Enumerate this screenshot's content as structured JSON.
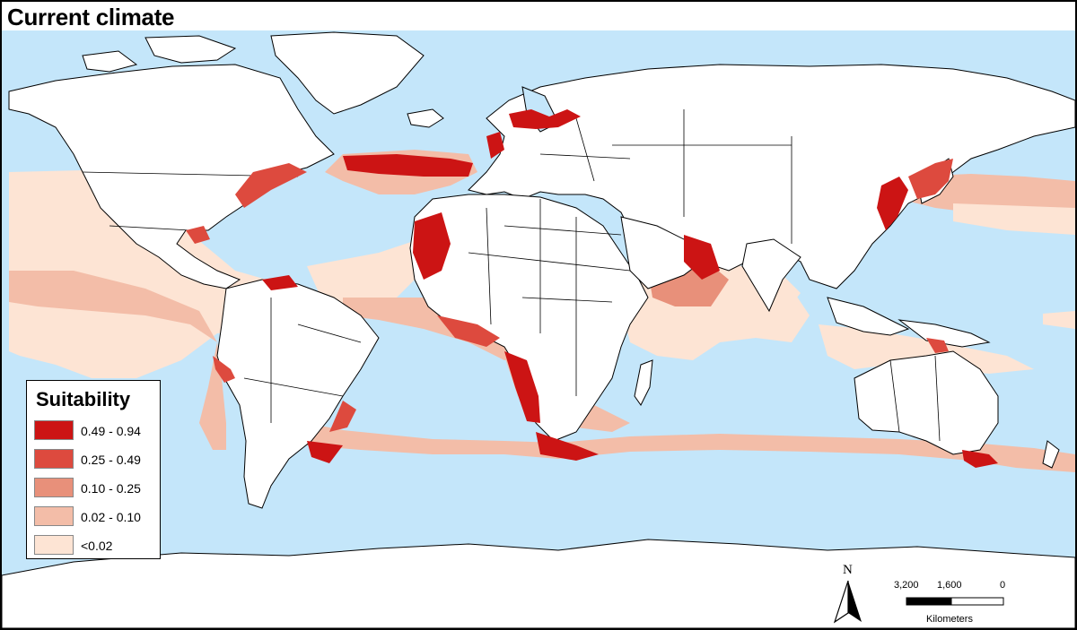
{
  "map": {
    "title": "Current climate",
    "colors": {
      "ocean": "#c4e6fa",
      "land": "#ffffff",
      "border": "#000000",
      "class_5": "#cc1414",
      "class_4": "#dd4a3e",
      "class_3": "#e8907a",
      "class_2": "#f3bda8",
      "class_1": "#fde4d4"
    }
  },
  "legend": {
    "title": "Suitability",
    "items": [
      {
        "label": "0.49 - 0.94",
        "color": "#cc1414"
      },
      {
        "label": "0.25 - 0.49",
        "color": "#dd4a3e"
      },
      {
        "label": "0.10 - 0.25",
        "color": "#e8907a"
      },
      {
        "label": "0.02 - 0.10",
        "color": "#f3bda8"
      },
      {
        "label": "<0.02",
        "color": "#fde4d4"
      }
    ]
  },
  "north_arrow": {
    "label": "N",
    "icon": "north-arrow-icon"
  },
  "scale_bar": {
    "ticks": [
      "3,200",
      "1,600",
      "0"
    ],
    "units": "Kilometers"
  }
}
